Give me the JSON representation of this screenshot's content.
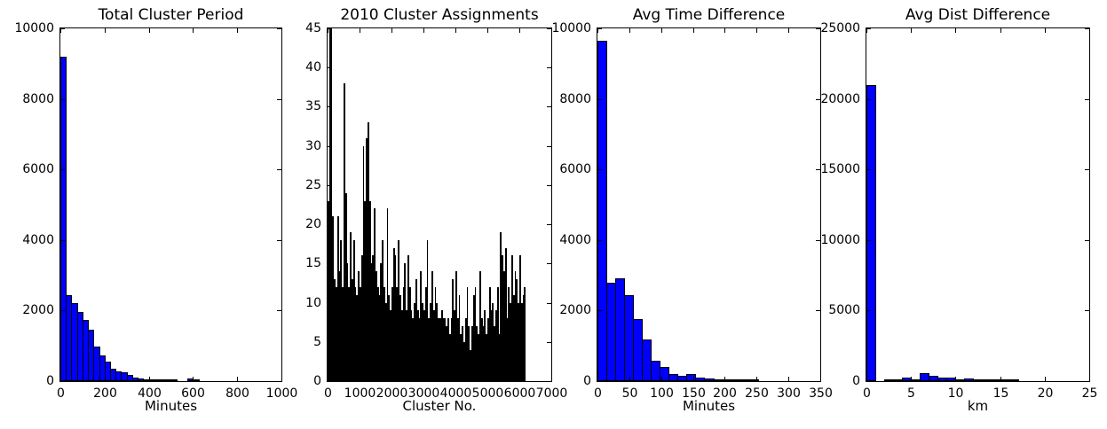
{
  "figure": {
    "background_color": "#ffffff",
    "bar_fill_color": "#0000ff",
    "bar_edge_color": "#000000",
    "dense_series_color": "#000000",
    "axis_color": "#000000"
  },
  "chart_data": [
    {
      "type": "bar",
      "title": "Total Cluster Period",
      "xlabel": "Minutes",
      "ylabel": "",
      "xlim": [
        0,
        1000
      ],
      "ylim": [
        0,
        10000
      ],
      "xticks": [
        0,
        200,
        400,
        600,
        800,
        1000
      ],
      "yticks": [
        0,
        2000,
        4000,
        6000,
        8000,
        10000
      ],
      "grid": false,
      "legend": null,
      "bar_style": "blue-outlined",
      "bin_start": 0,
      "bin_width": 25,
      "values": [
        9200,
        2425,
        2200,
        1950,
        1725,
        1450,
        975,
        725,
        550,
        350,
        275,
        250,
        175,
        110,
        80,
        60,
        45,
        35,
        25,
        20,
        15,
        10,
        0,
        80,
        55,
        0
      ]
    },
    {
      "type": "bar",
      "title": "2010 Cluster Assignments",
      "xlabel": "Cluster No.",
      "ylabel": "",
      "xlim": [
        0,
        7000
      ],
      "ylim": [
        0,
        45
      ],
      "xticks": [
        0,
        1000,
        2000,
        3000,
        4000,
        5000,
        6000,
        7000
      ],
      "yticks": [
        0,
        5,
        10,
        15,
        20,
        25,
        30,
        35,
        40,
        45
      ],
      "grid": false,
      "legend": null,
      "bar_style": "filled-black",
      "bin_start": 0,
      "bin_width": 50,
      "values": [
        23,
        46,
        45,
        21,
        13,
        12,
        21,
        14,
        18,
        12,
        38,
        24,
        15,
        12,
        19,
        13,
        18,
        12,
        11,
        14,
        12,
        16,
        30,
        23,
        31,
        33,
        23,
        15,
        16,
        22,
        14,
        12,
        11,
        15,
        18,
        12,
        10,
        22,
        11,
        9,
        12,
        17,
        16,
        12,
        18,
        11,
        9,
        12,
        15,
        9,
        16,
        12,
        9,
        8,
        10,
        13,
        9,
        8,
        14,
        10,
        9,
        12,
        18,
        8,
        10,
        14,
        9,
        12,
        10,
        8,
        8,
        9,
        8,
        8,
        7,
        8,
        6,
        8,
        13,
        9,
        14,
        8,
        11,
        6,
        7,
        5,
        8,
        12,
        7,
        4,
        7,
        11,
        12,
        7,
        6,
        14,
        8,
        7,
        9,
        6,
        8,
        12,
        9,
        10,
        7,
        9,
        12,
        6,
        19,
        16,
        14,
        17,
        8,
        12,
        10,
        16,
        11,
        14,
        13,
        10,
        16,
        10,
        11,
        12
      ]
    },
    {
      "type": "bar",
      "title": "Avg Time Difference",
      "xlabel": "Minutes",
      "ylabel": "",
      "xlim": [
        0,
        350
      ],
      "ylim": [
        0,
        10000
      ],
      "xticks": [
        0,
        50,
        100,
        150,
        200,
        250,
        300,
        350
      ],
      "yticks": [
        0,
        2000,
        4000,
        6000,
        8000,
        10000
      ],
      "grid": false,
      "legend": null,
      "bar_style": "blue-outlined",
      "bin_start": 0,
      "bin_width": 14,
      "values": [
        9650,
        2800,
        2925,
        2425,
        1750,
        1175,
        575,
        400,
        200,
        150,
        200,
        100,
        75,
        50,
        40,
        30,
        20,
        30,
        10,
        5,
        5,
        0,
        0,
        0,
        0
      ]
    },
    {
      "type": "bar",
      "title": "Avg Dist Difference",
      "xlabel": "km",
      "ylabel": "",
      "xlim": [
        0,
        25
      ],
      "ylim": [
        0,
        25000
      ],
      "xticks": [
        0,
        5,
        10,
        15,
        20,
        25
      ],
      "yticks": [
        0,
        5000,
        10000,
        15000,
        20000,
        25000
      ],
      "grid": false,
      "legend": null,
      "bar_style": "blue-outlined",
      "bin_start": 0,
      "bin_width": 1,
      "values": [
        21000,
        0,
        75,
        150,
        275,
        150,
        550,
        350,
        250,
        250,
        75,
        200,
        75,
        50,
        50,
        40,
        40,
        30,
        30,
        0,
        0,
        0,
        0,
        0,
        0
      ]
    }
  ]
}
